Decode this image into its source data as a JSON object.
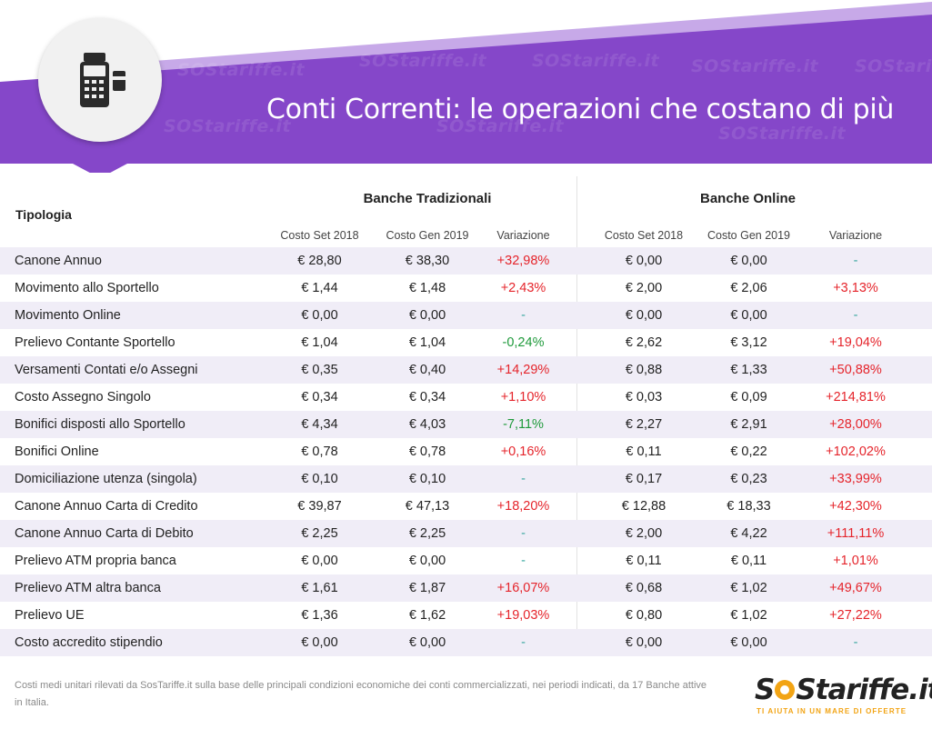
{
  "header": {
    "title": "Conti Correnti: le operazioni che costano di più",
    "watermark_text": "SOStariffe.it",
    "accent_color": "#8547c9",
    "accent_light": "#c7a9e8",
    "icon": "pos-terminal-icon"
  },
  "table": {
    "tipologia_label": "Tipologia",
    "groups": [
      {
        "label": "Banche Tradizionali",
        "sub": [
          "Costo Set 2018",
          "Costo Gen 2019",
          "Variazione"
        ]
      },
      {
        "label": "Banche Online",
        "sub": [
          "Costo Set 2018",
          "Costo Gen 2019",
          "Variazione"
        ]
      }
    ],
    "rows": [
      {
        "name": "Canone Annuo",
        "t": [
          "€ 28,80",
          "€ 38,30",
          "+32,98%"
        ],
        "o": [
          "€ 0,00",
          "€ 0,00",
          "-"
        ]
      },
      {
        "name": "Movimento allo Sportello",
        "t": [
          "€ 1,44",
          "€ 1,48",
          "+2,43%"
        ],
        "o": [
          "€ 2,00",
          "€ 2,06",
          "+3,13%"
        ]
      },
      {
        "name": "Movimento Online",
        "t": [
          "€ 0,00",
          "€ 0,00",
          "-"
        ],
        "o": [
          "€ 0,00",
          "€ 0,00",
          "-"
        ]
      },
      {
        "name": "Prelievo Contante Sportello",
        "t": [
          "€ 1,04",
          "€ 1,04",
          "-0,24%"
        ],
        "o": [
          "€ 2,62",
          "€ 3,12",
          "+19,04%"
        ]
      },
      {
        "name": "Versamenti Contati e/o Assegni",
        "t": [
          "€ 0,35",
          "€ 0,40",
          "+14,29%"
        ],
        "o": [
          "€ 0,88",
          "€ 1,33",
          "+50,88%"
        ]
      },
      {
        "name": "Costo Assegno Singolo",
        "t": [
          "€ 0,34",
          "€ 0,34",
          "+1,10%"
        ],
        "o": [
          "€ 0,03",
          "€ 0,09",
          "+214,81%"
        ]
      },
      {
        "name": "Bonifici disposti allo Sportello",
        "t": [
          "€ 4,34",
          "€ 4,03",
          "-7,11%"
        ],
        "o": [
          "€ 2,27",
          "€ 2,91",
          "+28,00%"
        ]
      },
      {
        "name": "Bonifici Online",
        "t": [
          "€ 0,78",
          "€ 0,78",
          "+0,16%"
        ],
        "o": [
          "€ 0,11",
          "€ 0,22",
          "+102,02%"
        ]
      },
      {
        "name": "Domiciliazione utenza (singola)",
        "t": [
          "€ 0,10",
          "€ 0,10",
          "-"
        ],
        "o": [
          "€ 0,17",
          "€ 0,23",
          "+33,99%"
        ]
      },
      {
        "name": "Canone Annuo Carta di Credito",
        "t": [
          "€ 39,87",
          "€ 47,13",
          "+18,20%"
        ],
        "o": [
          "€ 12,88",
          "€ 18,33",
          "+42,30%"
        ]
      },
      {
        "name": "Canone Annuo Carta di Debito",
        "t": [
          "€ 2,25",
          "€ 2,25",
          "-"
        ],
        "o": [
          "€ 2,00",
          "€ 4,22",
          "+111,11%"
        ]
      },
      {
        "name": "Prelievo ATM propria banca",
        "t": [
          "€ 0,00",
          "€ 0,00",
          "-"
        ],
        "o": [
          "€ 0,11",
          "€ 0,11",
          "+1,01%"
        ]
      },
      {
        "name": "Prelievo ATM altra banca",
        "t": [
          "€ 1,61",
          "€ 1,87",
          "+16,07%"
        ],
        "o": [
          "€ 0,68",
          "€ 1,02",
          "+49,67%"
        ]
      },
      {
        "name": "Prelievo UE",
        "t": [
          "€ 1,36",
          "€ 1,62",
          "+19,03%"
        ],
        "o": [
          "€ 0,80",
          "€ 1,02",
          "+27,22%"
        ]
      },
      {
        "name": "Costo accredito stipendio",
        "t": [
          "€ 0,00",
          "€ 0,00",
          "-"
        ],
        "o": [
          "€ 0,00",
          "€ 0,00",
          "-"
        ]
      }
    ]
  },
  "footnote": "Costi medi unitari rilevati da SosTariffe.it sulla base delle principali condizioni economiche dei conti commercializzati, nei periodi indicati, da 17 Banche attive in Italia.",
  "brand": {
    "name_prefix": "S",
    "name_suffix": "Stariffe.it",
    "tagline": "TI AIUTA IN UN MARE DI OFFERTE",
    "brand_color": "#f2a414"
  }
}
